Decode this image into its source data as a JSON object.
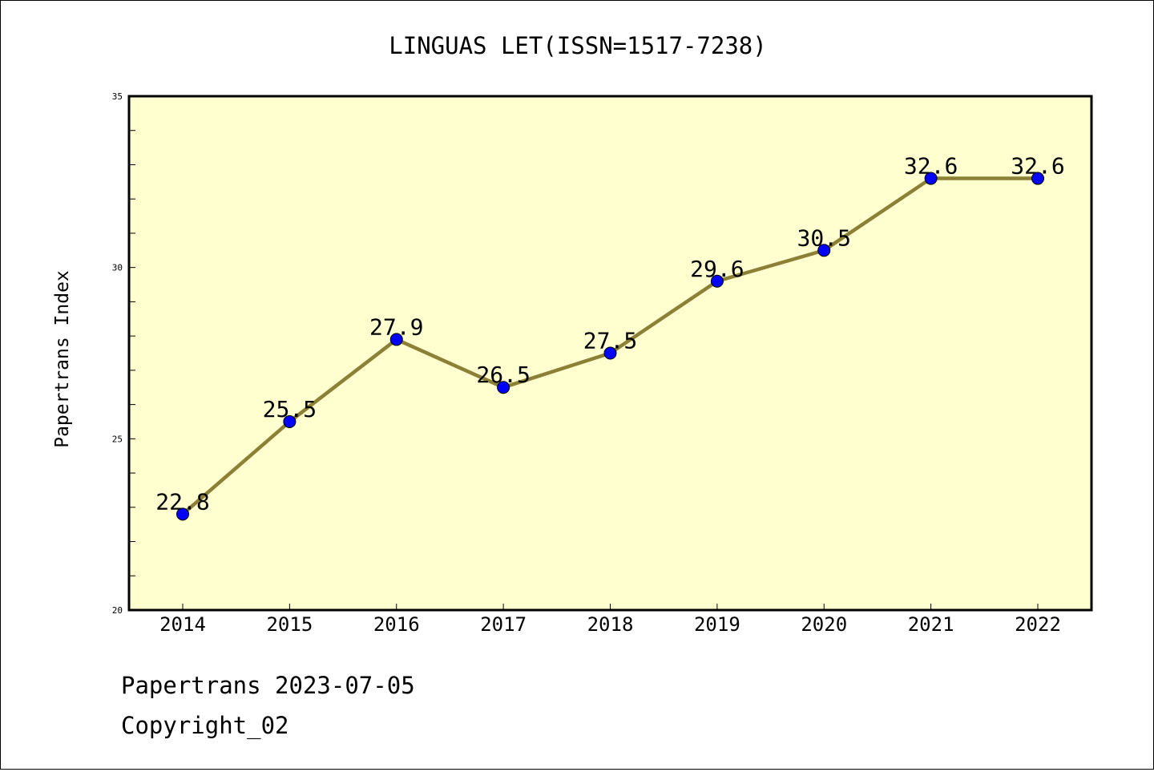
{
  "chart_data": {
    "type": "line",
    "title": "LINGUAS LET(ISSN=1517-7238)",
    "xlabel": "",
    "ylabel": "Papertrans Index",
    "categories": [
      "2014",
      "2015",
      "2016",
      "2017",
      "2018",
      "2019",
      "2020",
      "2021",
      "2022"
    ],
    "values": [
      22.8,
      25.5,
      27.9,
      26.5,
      27.5,
      29.6,
      30.5,
      32.6,
      32.6
    ],
    "data_labels": [
      "22.8",
      "25.5",
      "27.9",
      "26.5",
      "27.5",
      "29.6",
      "30.5",
      "32.6",
      "32.6"
    ],
    "ylim": [
      20,
      35
    ],
    "yticks": [
      "20",
      "25",
      "30",
      "35"
    ],
    "grid": false,
    "legend": "none",
    "colors": {
      "plot_background": "#ffffd0",
      "line": "#8b8035",
      "marker": "#0000ff"
    }
  },
  "footer": {
    "source_line": "Papertrans 2023-07-05",
    "copyright": "Copyright_02"
  }
}
